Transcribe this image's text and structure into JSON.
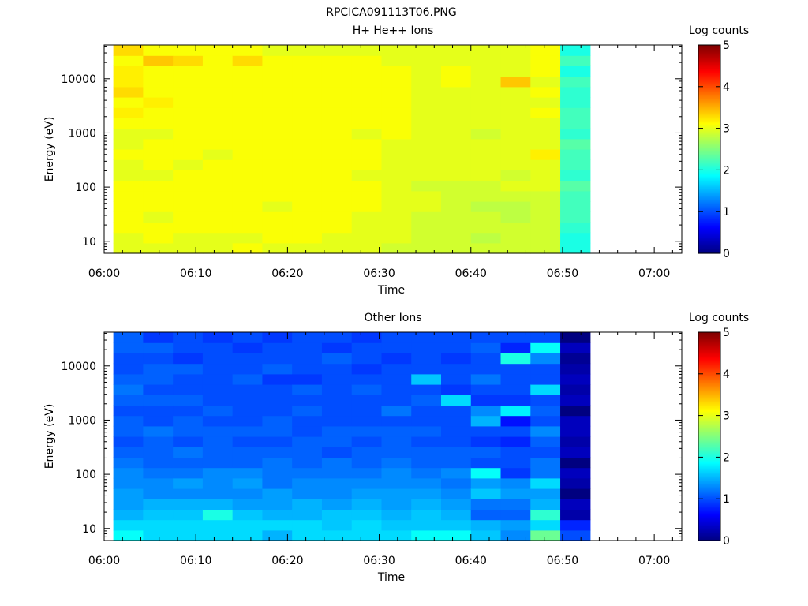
{
  "figure_title": "RPCICA091113T06.PNG",
  "chart_data": [
    {
      "type": "heatmap",
      "title": "H+ He++ Ions",
      "xlabel": "Time",
      "ylabel": "Energy (eV)",
      "colorbar_label": "Log counts",
      "x_ticks": [
        "06:00",
        "06:10",
        "06:20",
        "06:30",
        "06:40",
        "06:50",
        "07:00"
      ],
      "x_range": [
        "06:00",
        "07:03"
      ],
      "data_extent_x": [
        "06:01",
        "06:53"
      ],
      "y_scale": "log",
      "y_ticks": [
        10,
        100,
        1000,
        10000
      ],
      "y_tick_labels": [
        "10",
        "100",
        "1000",
        "10000"
      ],
      "y_range": [
        6,
        42000
      ],
      "colorbar_ticks": [
        "0",
        "1",
        "2",
        "3",
        "4",
        "5"
      ],
      "colorbar_range": [
        0,
        5
      ],
      "colormap": "jet",
      "columns": 16,
      "rows": 20,
      "log_counts": [
        [
          3.0,
          3.0,
          3.1,
          3.1,
          3.1,
          3.1,
          3.1,
          3.0,
          3.0,
          3.1,
          3.0,
          3.0,
          3.1,
          3.2,
          3.1,
          3.3,
          3.2,
          3.2,
          3.1,
          3.3
        ],
        [
          3.0,
          3.1,
          3.1,
          3.0,
          3.1,
          3.1,
          3.1,
          3.0,
          3.1,
          3.1,
          3.1,
          3.0,
          3.1,
          3.1,
          3.2,
          3.1,
          3.1,
          3.1,
          3.4,
          3.1
        ],
        [
          3.0,
          3.0,
          3.1,
          3.1,
          3.1,
          3.1,
          3.1,
          3.1,
          3.0,
          3.1,
          3.1,
          3.1,
          3.1,
          3.1,
          3.1,
          3.1,
          3.1,
          3.1,
          3.3,
          3.1
        ],
        [
          3.0,
          3.0,
          3.1,
          3.1,
          3.1,
          3.1,
          3.1,
          3.1,
          3.1,
          3.0,
          3.1,
          3.1,
          3.1,
          3.1,
          3.1,
          3.1,
          3.1,
          3.1,
          3.1,
          3.1
        ],
        [
          3.1,
          3.0,
          3.1,
          3.1,
          3.1,
          3.1,
          3.1,
          3.1,
          3.1,
          3.1,
          3.1,
          3.1,
          3.1,
          3.1,
          3.1,
          3.1,
          3.1,
          3.1,
          3.3,
          3.1
        ],
        [
          3.0,
          3.1,
          3.1,
          3.1,
          3.0,
          3.1,
          3.1,
          3.1,
          3.1,
          3.1,
          3.1,
          3.1,
          3.1,
          3.1,
          3.1,
          3.1,
          3.1,
          3.1,
          3.1,
          3.0
        ],
        [
          3.0,
          3.1,
          3.1,
          3.1,
          3.1,
          3.1,
          3.1,
          3.1,
          3.1,
          3.1,
          3.1,
          3.1,
          3.1,
          3.1,
          3.1,
          3.1,
          3.1,
          3.1,
          3.1,
          3.0
        ],
        [
          3.0,
          3.0,
          3.1,
          3.1,
          3.1,
          3.1,
          3.1,
          3.1,
          3.1,
          3.1,
          3.1,
          3.1,
          3.1,
          3.1,
          3.1,
          3.1,
          3.1,
          3.1,
          3.1,
          3.0
        ],
        [
          3.0,
          3.0,
          3.0,
          3.0,
          3.1,
          3.1,
          3.1,
          3.0,
          3.1,
          3.1,
          3.1,
          3.0,
          3.1,
          3.1,
          3.1,
          3.1,
          3.1,
          3.1,
          3.1,
          3.0
        ],
        [
          2.9,
          3.0,
          3.0,
          3.0,
          3.0,
          3.0,
          3.0,
          3.0,
          3.0,
          3.0,
          3.0,
          3.1,
          3.1,
          3.1,
          3.1,
          3.1,
          3.1,
          3.1,
          3.0,
          3.0
        ],
        [
          2.9,
          2.9,
          2.9,
          2.9,
          3.0,
          3.0,
          2.9,
          3.0,
          3.0,
          3.0,
          3.0,
          3.0,
          3.0,
          3.0,
          3.0,
          3.0,
          3.0,
          3.0,
          3.0,
          3.0
        ],
        [
          2.9,
          2.9,
          2.9,
          2.9,
          2.9,
          2.9,
          2.9,
          3.0,
          3.0,
          3.0,
          3.0,
          3.0,
          3.0,
          3.0,
          3.0,
          3.0,
          3.1,
          3.1,
          3.0,
          3.0
        ],
        [
          2.9,
          2.8,
          2.9,
          2.9,
          2.8,
          2.9,
          2.9,
          3.0,
          3.0,
          3.0,
          3.0,
          2.9,
          3.0,
          3.0,
          3.0,
          3.0,
          3.0,
          3.0,
          3.0,
          3.0
        ],
        [
          2.9,
          2.9,
          2.9,
          2.8,
          2.8,
          2.9,
          3.0,
          2.9,
          3.0,
          3.0,
          3.0,
          3.0,
          3.0,
          3.0,
          3.0,
          3.0,
          3.4,
          3.0,
          3.0,
          3.0
        ],
        [
          2.9,
          2.9,
          2.9,
          2.9,
          2.9,
          2.9,
          3.0,
          3.0,
          3.0,
          3.2,
          3.0,
          3.0,
          3.0,
          3.1,
          3.0,
          3.1,
          3.0,
          3.1,
          3.1,
          3.1
        ],
        [
          2.0,
          2.0,
          2.1,
          2.2,
          2.2,
          2.2,
          2.3,
          2.1,
          2.2,
          2.2,
          2.3,
          2.1,
          2.2,
          2.2,
          2.1,
          2.1,
          2.2,
          2.0,
          2.2,
          2.0
        ]
      ]
    },
    {
      "type": "heatmap",
      "title": "Other Ions",
      "xlabel": "Time",
      "ylabel": "Energy (eV)",
      "colorbar_label": "Log counts",
      "x_ticks": [
        "06:00",
        "06:10",
        "06:20",
        "06:30",
        "06:40",
        "06:50",
        "07:00"
      ],
      "x_range": [
        "06:00",
        "07:03"
      ],
      "data_extent_x": [
        "06:01",
        "06:53"
      ],
      "y_scale": "log",
      "y_ticks": [
        10,
        100,
        1000,
        10000
      ],
      "y_tick_labels": [
        "10",
        "100",
        "1000",
        "10000"
      ],
      "y_range": [
        6,
        42000
      ],
      "colorbar_ticks": [
        "0",
        "1",
        "2",
        "3",
        "4",
        "5"
      ],
      "colorbar_range": [
        0,
        5
      ],
      "colormap": "jet",
      "columns": 16,
      "rows": 20,
      "log_counts": [
        [
          1.9,
          1.7,
          1.5,
          1.4,
          1.4,
          1.3,
          1.3,
          1.2,
          1.1,
          1.0,
          1.1,
          1.1,
          1.0,
          1.1,
          1.2,
          1.1,
          1.0,
          1.0,
          1.1,
          1.1
        ],
        [
          1.7,
          1.7,
          1.6,
          1.5,
          1.3,
          1.3,
          1.2,
          1.1,
          1.1,
          1.1,
          1.2,
          1.0,
          1.0,
          1.1,
          1.0,
          1.1,
          1.1,
          1.0,
          1.1,
          0.9
        ],
        [
          1.7,
          1.7,
          1.6,
          1.5,
          1.3,
          1.4,
          1.2,
          1.1,
          1.2,
          1.0,
          1.1,
          1.1,
          1.0,
          1.1,
          1.0,
          1.0,
          1.1,
          0.9,
          1.0,
          1.0
        ],
        [
          1.7,
          1.7,
          2.0,
          1.5,
          1.3,
          1.3,
          1.3,
          1.1,
          1.1,
          1.1,
          1.1,
          1.0,
          1.1,
          1.0,
          1.0,
          1.0,
          1.0,
          1.0,
          1.0,
          0.9
        ],
        [
          1.7,
          1.7,
          1.6,
          1.4,
          1.3,
          1.4,
          1.3,
          1.1,
          1.1,
          1.0,
          1.1,
          1.0,
          1.0,
          1.0,
          1.0,
          1.1,
          1.0,
          1.0,
          0.9,
          1.0
        ],
        [
          1.5,
          1.7,
          1.5,
          1.4,
          1.4,
          1.2,
          1.2,
          1.2,
          1.1,
          1.0,
          1.1,
          1.1,
          1.0,
          1.0,
          1.0,
          0.9,
          1.1,
          1.0,
          1.0,
          0.9
        ],
        [
          1.7,
          1.7,
          1.5,
          1.5,
          1.3,
          1.3,
          1.2,
          1.1,
          1.1,
          1.1,
          1.0,
          1.0,
          1.1,
          1.0,
          1.1,
          0.9,
          1.0,
          1.0,
          1.0,
          1.0
        ],
        [
          1.7,
          1.6,
          1.6,
          1.4,
          1.3,
          1.3,
          1.2,
          1.2,
          1.0,
          1.1,
          1.1,
          1.0,
          1.0,
          1.0,
          1.0,
          1.0,
          1.0,
          1.1,
          0.9,
          1.0
        ],
        [
          1.7,
          1.7,
          1.6,
          1.5,
          1.4,
          1.3,
          1.2,
          1.1,
          1.1,
          1.0,
          1.1,
          1.0,
          1.0,
          1.0,
          1.1,
          1.0,
          0.9,
          1.0,
          1.0,
          0.9
        ],
        [
          1.7,
          1.6,
          1.5,
          1.4,
          1.4,
          1.3,
          1.3,
          1.2,
          1.1,
          1.1,
          1.1,
          1.0,
          1.2,
          1.0,
          1.0,
          1.0,
          1.0,
          0.9,
          1.0,
          1.0
        ],
        [
          1.9,
          1.6,
          1.6,
          1.5,
          1.4,
          1.3,
          1.2,
          1.1,
          1.1,
          1.0,
          1.1,
          1.0,
          1.0,
          1.1,
          1.0,
          1.6,
          1.0,
          1.0,
          1.0,
          1.0
        ],
        [
          1.9,
          1.6,
          1.5,
          1.4,
          1.3,
          1.2,
          1.3,
          1.1,
          1.1,
          1.0,
          1.0,
          1.0,
          1.0,
          1.7,
          0.9,
          1.0,
          1.0,
          0.9,
          1.0,
          1.0
        ],
        [
          1.6,
          1.5,
          1.1,
          1.2,
          1.6,
          1.4,
          1.9,
          1.0,
          1.1,
          0.9,
          1.0,
          1.5,
          1.3,
          0.9,
          1.0,
          1.2,
          1.0,
          1.0,
          1.1,
          1.0
        ],
        [
          1.3,
          1.4,
          1.1,
          1.2,
          1.4,
          1.3,
          0.9,
          1.0,
          1.0,
          0.8,
          1.0,
          0.7,
          1.8,
          0.9,
          1.0,
          1.0,
          1.0,
          2.0,
          0.8,
          1.0
        ],
        [
          2.4,
          1.7,
          2.1,
          1.5,
          1.4,
          1.7,
          1.2,
          1.2,
          1.0,
          1.1,
          1.3,
          1.0,
          1.1,
          1.0,
          1.7,
          1.0,
          1.0,
          1.3,
          1.9,
          1.0
        ],
        [
          1.0,
          0.8,
          0.2,
          0.3,
          0.0,
          0.2,
          0.3,
          0.0,
          0.3,
          0.2,
          0.3,
          0.3,
          0.0,
          0.3,
          0.2,
          0.3,
          0.2,
          0.1,
          0.3,
          0.0
        ]
      ]
    }
  ]
}
